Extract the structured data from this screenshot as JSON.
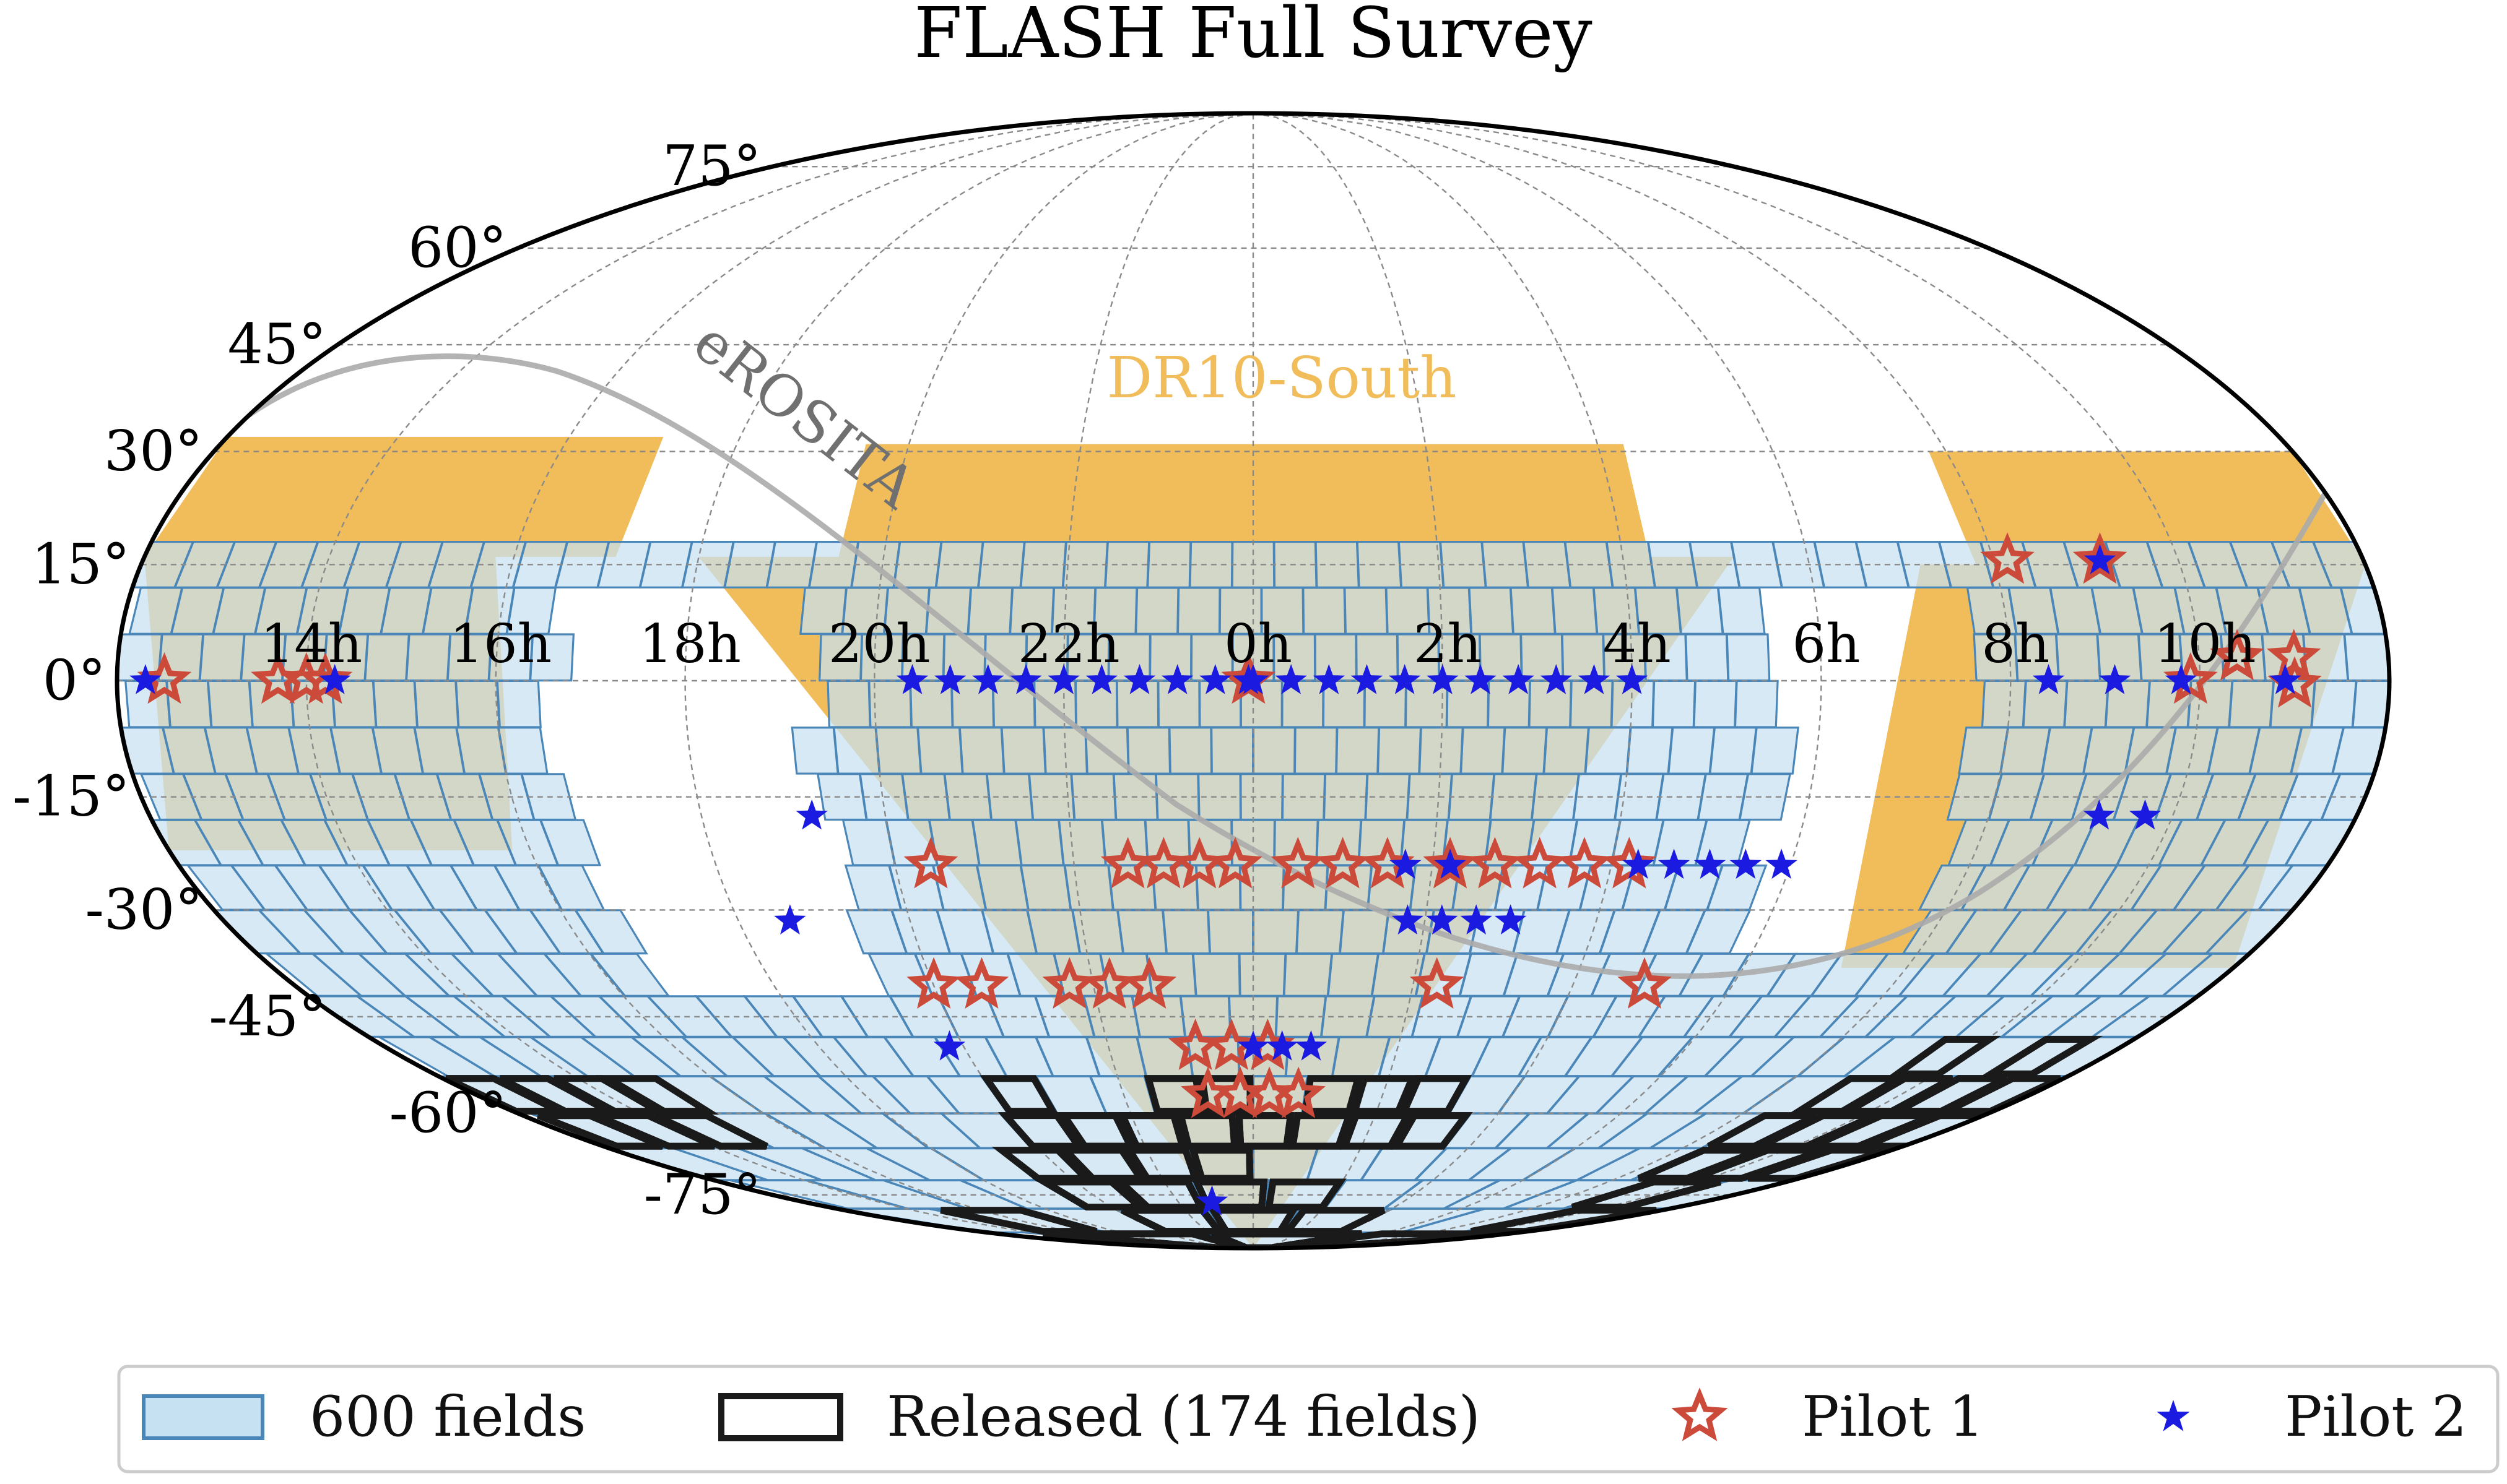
{
  "chart_data": {
    "type": "scatter",
    "projection": "mollweide",
    "title": "FLASH Full Survey",
    "lat_ticks": [
      {
        "value": 75,
        "label": "75°"
      },
      {
        "value": 60,
        "label": "60°"
      },
      {
        "value": 45,
        "label": "45°"
      },
      {
        "value": 30,
        "label": "30°"
      },
      {
        "value": 15,
        "label": "15°"
      },
      {
        "value": 0,
        "label": "0°"
      },
      {
        "value": -15,
        "label": "-15°"
      },
      {
        "value": -30,
        "label": "-30°"
      },
      {
        "value": -45,
        "label": "-45°"
      },
      {
        "value": -60,
        "label": "-60°"
      },
      {
        "value": -75,
        "label": "-75°"
      }
    ],
    "ra_ticks": [
      {
        "value": 10,
        "label": "10h"
      },
      {
        "value": 8,
        "label": "8h"
      },
      {
        "value": 6,
        "label": "6h"
      },
      {
        "value": 4,
        "label": "4h"
      },
      {
        "value": 2,
        "label": "2h"
      },
      {
        "value": 0,
        "label": "0h"
      },
      {
        "value": 22,
        "label": "22h"
      },
      {
        "value": 20,
        "label": "20h"
      },
      {
        "value": 18,
        "label": "18h"
      },
      {
        "value": 16,
        "label": "16h"
      },
      {
        "value": 14,
        "label": "14h"
      }
    ],
    "grid": true,
    "regions": [
      {
        "name": "DR10-South",
        "label": "DR10-South",
        "color": "#f0bd5a"
      },
      {
        "name": "eROSITA",
        "label": "eROSITA",
        "color": "#a9a9a9"
      }
    ],
    "fields": {
      "label": "600 fields",
      "fill": "#c6e1f1",
      "edge": "#4a86b8",
      "dec_min": -90,
      "dec_max": 18
    },
    "released": {
      "label": "Released (174 fields)",
      "edge": "#1a1a1a",
      "cells": [
        [
          0,
          12,
          2
        ],
        [
          1,
          12,
          2
        ],
        [
          2,
          12,
          2
        ],
        [
          3,
          12,
          2
        ],
        [
          0,
          13,
          2
        ],
        [
          1,
          13,
          2
        ],
        [
          2,
          13,
          2
        ],
        [
          3,
          13,
          2
        ],
        [
          5,
          12,
          2
        ],
        [
          6,
          12,
          2
        ],
        [
          5,
          13,
          2
        ],
        [
          6,
          13,
          2
        ],
        [
          19,
          12,
          1
        ],
        [
          24,
          12,
          1
        ],
        [
          25,
          12,
          1
        ],
        [
          26,
          12,
          1
        ],
        [
          31,
          12,
          1
        ],
        [
          32,
          12,
          1
        ],
        [
          33,
          12,
          1
        ],
        [
          34,
          12,
          1
        ],
        [
          31,
          13,
          2
        ],
        [
          32,
          13,
          2
        ],
        [
          33,
          13,
          2
        ],
        [
          34,
          13,
          2
        ],
        [
          19,
          13,
          2
        ],
        [
          20,
          13,
          2
        ],
        [
          21,
          13,
          2
        ],
        [
          22,
          13,
          2
        ],
        [
          23,
          13,
          2
        ],
        [
          24,
          13,
          2
        ],
        [
          25,
          13,
          2
        ],
        [
          26,
          13,
          2
        ],
        [
          27,
          13,
          2
        ],
        [
          28,
          13,
          2
        ],
        [
          29,
          13,
          2
        ],
        [
          30,
          13,
          2
        ],
        [
          19,
          14,
          2
        ],
        [
          20,
          14,
          2
        ],
        [
          21,
          14,
          2
        ],
        [
          22,
          14,
          2
        ],
        [
          23,
          14,
          2
        ],
        [
          24,
          14,
          2
        ],
        [
          25,
          14,
          2
        ],
        [
          26,
          14,
          2
        ],
        [
          27,
          14,
          2
        ],
        [
          24,
          15,
          2
        ],
        [
          25,
          15,
          2
        ],
        [
          27,
          15,
          2
        ],
        [
          28,
          15,
          2
        ],
        [
          29,
          15,
          2
        ],
        [
          30,
          15,
          2
        ],
        [
          49,
          11,
          2
        ],
        [
          52,
          11,
          2
        ],
        [
          48,
          12,
          2
        ],
        [
          49,
          12,
          2
        ],
        [
          50,
          12,
          2
        ],
        [
          51,
          12,
          2
        ],
        [
          52,
          12,
          2
        ],
        [
          53,
          12,
          2
        ],
        [
          54,
          12,
          2
        ],
        [
          48,
          13,
          2
        ],
        [
          49,
          13,
          2
        ],
        [
          50,
          13,
          2
        ],
        [
          51,
          13,
          2
        ],
        [
          52,
          13,
          2
        ],
        [
          53,
          13,
          2
        ],
        [
          54,
          13,
          2
        ],
        [
          48,
          14,
          2
        ],
        [
          49,
          14,
          2
        ],
        [
          51,
          14,
          2
        ],
        [
          52,
          14,
          2
        ],
        [
          53,
          14,
          2
        ],
        [
          50,
          15,
          2
        ],
        [
          51,
          15,
          2
        ],
        [
          51,
          16,
          2
        ],
        [
          49,
          17,
          2
        ],
        [
          16,
          15,
          2
        ],
        [
          17,
          15,
          2
        ],
        [
          18,
          15,
          2
        ],
        [
          19,
          15,
          2
        ],
        [
          20,
          15,
          2
        ],
        [
          21,
          15,
          2
        ],
        [
          22,
          15,
          2
        ],
        [
          23,
          15,
          2
        ],
        [
          20,
          16,
          2
        ],
        [
          21,
          16,
          2
        ],
        [
          22,
          16,
          2
        ],
        [
          23,
          16,
          2
        ],
        [
          24,
          16,
          2
        ],
        [
          25,
          16,
          2
        ],
        [
          26,
          16,
          2
        ],
        [
          33,
          16,
          2
        ],
        [
          18,
          17,
          2
        ],
        [
          19,
          17,
          2
        ],
        [
          20,
          17,
          2
        ],
        [
          21,
          17,
          2
        ],
        [
          22,
          17,
          2
        ],
        [
          23,
          17,
          2
        ],
        [
          24,
          17,
          2
        ],
        [
          25,
          17,
          2
        ],
        [
          26,
          17,
          2
        ],
        [
          33,
          17,
          2
        ],
        [
          17,
          18,
          2
        ],
        [
          18,
          18,
          2
        ],
        [
          19,
          18,
          2
        ],
        [
          20,
          18,
          2
        ],
        [
          21,
          18,
          2
        ],
        [
          22,
          18,
          2
        ],
        [
          23,
          18,
          2
        ],
        [
          24,
          18,
          2
        ],
        [
          25,
          18,
          2
        ],
        [
          26,
          18,
          2
        ],
        [
          17,
          19,
          2
        ],
        [
          18,
          19,
          2
        ],
        [
          19,
          19,
          2
        ],
        [
          20,
          19,
          2
        ],
        [
          21,
          19,
          2
        ],
        [
          22,
          19,
          2
        ],
        [
          23,
          19,
          2
        ],
        [
          24,
          19,
          2
        ],
        [
          25,
          19,
          2
        ],
        [
          26,
          19,
          2
        ],
        [
          17,
          20,
          2
        ],
        [
          18,
          20,
          2
        ],
        [
          19,
          20,
          2
        ],
        [
          20,
          20,
          2
        ],
        [
          21,
          20,
          2
        ],
        [
          22,
          20,
          2
        ],
        [
          23,
          20,
          2
        ],
        [
          24,
          20,
          2
        ],
        [
          25,
          20,
          2
        ],
        [
          26,
          20,
          2
        ],
        [
          17,
          21,
          2
        ],
        [
          18,
          21,
          2
        ],
        [
          19,
          21,
          2
        ],
        [
          20,
          21,
          2
        ],
        [
          21,
          21,
          2
        ],
        [
          22,
          21,
          2
        ],
        [
          23,
          21,
          2
        ],
        [
          24,
          21,
          2
        ],
        [
          25,
          21,
          2
        ],
        [
          26,
          21,
          2
        ],
        [
          31,
          21,
          2
        ],
        [
          32,
          21,
          2
        ],
        [
          33,
          21,
          2
        ],
        [
          34,
          21,
          2
        ],
        [
          35,
          21,
          2
        ],
        [
          18,
          22,
          2
        ],
        [
          19,
          22,
          2
        ],
        [
          20,
          22,
          2
        ],
        [
          21,
          22,
          2
        ],
        [
          22,
          22,
          2
        ],
        [
          23,
          22,
          2
        ],
        [
          24,
          22,
          2
        ],
        [
          25,
          22,
          2
        ],
        [
          26,
          22,
          2
        ],
        [
          27,
          22,
          2
        ],
        [
          28,
          22,
          2
        ],
        [
          29,
          22,
          2
        ],
        [
          30,
          22,
          2
        ],
        [
          31,
          22,
          2
        ],
        [
          32,
          22,
          2
        ],
        [
          33,
          22,
          2
        ],
        [
          18,
          23,
          2
        ],
        [
          19,
          23,
          2
        ],
        [
          20,
          23,
          2
        ],
        [
          21,
          23,
          2
        ],
        [
          22,
          23,
          2
        ],
        [
          23,
          23,
          2
        ],
        [
          24,
          23,
          2
        ],
        [
          25,
          23,
          2
        ],
        [
          26,
          23,
          2
        ],
        [
          27,
          23,
          2
        ],
        [
          28,
          23,
          2
        ],
        [
          29,
          23,
          2
        ],
        [
          30,
          23,
          2
        ],
        [
          31,
          23,
          2
        ],
        [
          20,
          24,
          2
        ],
        [
          21,
          24,
          2
        ],
        [
          22,
          24,
          2
        ],
        [
          23,
          24,
          2
        ],
        [
          24,
          24,
          2
        ],
        [
          25,
          24,
          2
        ],
        [
          26,
          24,
          2
        ],
        [
          5,
          18,
          2
        ],
        [
          7,
          18,
          2
        ],
        [
          9,
          16,
          2
        ],
        [
          9,
          17,
          2
        ],
        [
          10,
          18,
          2
        ],
        [
          10,
          19,
          2
        ]
      ]
    },
    "series": [
      {
        "name": "Pilot 1",
        "marker": "open-star",
        "color": "#cc4a3a",
        "points": [
          [
            9.15,
            15.5
          ],
          [
            8.15,
            15.5
          ],
          [
            11.0,
            3.0
          ],
          [
            10.4,
            3.0
          ],
          [
            11.0,
            -0.5
          ],
          [
            12.5,
            0.0
          ],
          [
            9.9,
            0.0
          ],
          [
            14.2,
            0.0
          ],
          [
            14.0,
            0.0
          ],
          [
            13.7,
            0.0
          ],
          [
            -0.05,
            0.0
          ],
          [
            4.2,
            -24.0
          ],
          [
            3.7,
            -24.0
          ],
          [
            3.2,
            -24.0
          ],
          [
            2.7,
            -24.0
          ],
          [
            2.2,
            -24.0
          ],
          [
            1.5,
            -24.0
          ],
          [
            1.0,
            -24.0
          ],
          [
            0.5,
            -24.0
          ],
          [
            23.8,
            -24.0
          ],
          [
            23.4,
            -24.0
          ],
          [
            23.0,
            -24.0
          ],
          [
            22.6,
            -24.0
          ],
          [
            20.4,
            -24.0
          ],
          [
            4.9,
            -40.5
          ],
          [
            2.3,
            -40.5
          ],
          [
            22.7,
            -40.5
          ],
          [
            22.2,
            -40.5
          ],
          [
            21.7,
            -40.5
          ],
          [
            20.6,
            -40.5
          ],
          [
            20.0,
            -40.5
          ],
          [
            0.2,
            -49.5
          ],
          [
            23.7,
            -49.5
          ],
          [
            23.2,
            -49.5
          ],
          [
            0.7,
            -57.0
          ],
          [
            0.25,
            -57.0
          ],
          [
            23.8,
            -57.0
          ],
          [
            23.3,
            -57.0
          ]
        ]
      },
      {
        "name": "Pilot 2",
        "marker": "filled-star",
        "color": "#1a1ae0",
        "points": [
          [
            9.15,
            15.5
          ],
          [
            -0.05,
            0.0
          ],
          [
            10.9,
            0.0
          ],
          [
            9.8,
            0.0
          ],
          [
            9.1,
            0.0
          ],
          [
            8.4,
            0.0
          ],
          [
            4.0,
            0.0
          ],
          [
            3.6,
            0.0
          ],
          [
            3.2,
            0.0
          ],
          [
            2.8,
            0.0
          ],
          [
            2.4,
            0.0
          ],
          [
            2.0,
            0.0
          ],
          [
            1.6,
            0.0
          ],
          [
            1.2,
            0.0
          ],
          [
            0.8,
            0.0
          ],
          [
            0.4,
            0.0
          ],
          [
            0.0,
            0.0
          ],
          [
            23.6,
            0.0
          ],
          [
            23.2,
            0.0
          ],
          [
            22.8,
            0.0
          ],
          [
            22.4,
            0.0
          ],
          [
            22.0,
            0.0
          ],
          [
            21.6,
            0.0
          ],
          [
            21.2,
            0.0
          ],
          [
            20.8,
            0.0
          ],
          [
            20.4,
            0.0
          ],
          [
            14.3,
            0.0
          ],
          [
            12.3,
            0.0
          ],
          [
            5.9,
            -24.0
          ],
          [
            5.5,
            -24.0
          ],
          [
            5.1,
            -24.0
          ],
          [
            4.7,
            -24.0
          ],
          [
            4.3,
            -24.0
          ],
          [
            2.2,
            -24.0
          ],
          [
            1.7,
            -24.0
          ],
          [
            3.0,
            -31.5
          ],
          [
            2.6,
            -31.5
          ],
          [
            2.2,
            -31.5
          ],
          [
            1.8,
            -31.5
          ],
          [
            9.7,
            -17.5
          ],
          [
            9.2,
            -17.5
          ],
          [
            19.2,
            -17.5
          ],
          [
            18.6,
            -31.5
          ],
          [
            0.8,
            -49.5
          ],
          [
            0.4,
            -49.5
          ],
          [
            0.0,
            -49.5
          ],
          [
            19.8,
            -49.5
          ],
          [
            22.9,
            -76.5
          ]
        ]
      }
    ],
    "legend": {
      "placement": "bottom",
      "entries": [
        {
          "label": "600 fields"
        },
        {
          "label": "Released (174 fields)"
        },
        {
          "label": "Pilot 1"
        },
        {
          "label": "Pilot 2"
        }
      ]
    }
  }
}
